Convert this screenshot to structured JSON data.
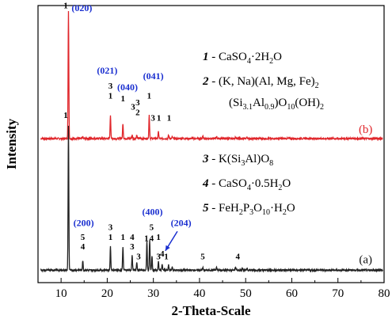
{
  "chart_data": {
    "type": "line",
    "xlabel": "2-Theta-Scale",
    "ylabel": "Intensity",
    "xlim": [
      5,
      80
    ],
    "xticks": [
      10,
      20,
      30,
      40,
      50,
      60,
      70,
      80
    ],
    "series": [
      {
        "name": "(b)",
        "color": "#e0262b",
        "baseline": 0.52,
        "noise": 0.006,
        "peaks": [
          {
            "x": 11.6,
            "h": 0.46
          },
          {
            "x": 14.7,
            "h": 0.006
          },
          {
            "x": 20.7,
            "h": 0.085
          },
          {
            "x": 23.4,
            "h": 0.055
          },
          {
            "x": 25.4,
            "h": 0.012
          },
          {
            "x": 26.4,
            "h": 0.012
          },
          {
            "x": 29.1,
            "h": 0.085
          },
          {
            "x": 31.1,
            "h": 0.025
          },
          {
            "x": 33.3,
            "h": 0.012
          },
          {
            "x": 34.1,
            "h": 0.006
          },
          {
            "x": 40.7,
            "h": 0.009
          },
          {
            "x": 43.7,
            "h": 0.008
          },
          {
            "x": 47.8,
            "h": 0.007
          },
          {
            "x": 50.3,
            "h": 0.006
          }
        ]
      },
      {
        "name": "(a)",
        "color": "#222222",
        "baseline": 0.045,
        "noise": 0.006,
        "peaks": [
          {
            "x": 11.6,
            "h": 0.52
          },
          {
            "x": 14.7,
            "h": 0.035
          },
          {
            "x": 20.7,
            "h": 0.085
          },
          {
            "x": 23.4,
            "h": 0.085
          },
          {
            "x": 25.4,
            "h": 0.055
          },
          {
            "x": 26.4,
            "h": 0.03
          },
          {
            "x": 28.6,
            "h": 0.105
          },
          {
            "x": 29.2,
            "h": 0.11
          },
          {
            "x": 29.7,
            "h": 0.05
          },
          {
            "x": 31.1,
            "h": 0.03
          },
          {
            "x": 31.9,
            "h": 0.022
          },
          {
            "x": 33.3,
            "h": 0.018
          },
          {
            "x": 34.1,
            "h": 0.012
          },
          {
            "x": 40.7,
            "h": 0.01
          },
          {
            "x": 43.7,
            "h": 0.009
          },
          {
            "x": 47.8,
            "h": 0.012
          },
          {
            "x": 49.3,
            "h": 0.01
          },
          {
            "x": 50.3,
            "h": 0.008
          }
        ]
      }
    ],
    "peak_labels": [
      {
        "x": 11.0,
        "y": 0.99,
        "text": "1"
      },
      {
        "x": 20.7,
        "y": 0.7,
        "text": "3"
      },
      {
        "x": 20.7,
        "y": 0.665,
        "text": "1"
      },
      {
        "x": 23.4,
        "y": 0.655,
        "text": "1"
      },
      {
        "x": 25.6,
        "y": 0.625,
        "text": "3"
      },
      {
        "x": 26.6,
        "y": 0.64,
        "text": "3"
      },
      {
        "x": 26.6,
        "y": 0.605,
        "text": "2"
      },
      {
        "x": 29.1,
        "y": 0.665,
        "text": "1"
      },
      {
        "x": 29.9,
        "y": 0.585,
        "text": "3"
      },
      {
        "x": 31.2,
        "y": 0.585,
        "text": "1"
      },
      {
        "x": 33.4,
        "y": 0.585,
        "text": "1"
      },
      {
        "x": 11.0,
        "y": 0.595,
        "text": "1"
      },
      {
        "x": 14.7,
        "y": 0.12,
        "text": "4"
      },
      {
        "x": 14.7,
        "y": 0.155,
        "text": "5"
      },
      {
        "x": 20.7,
        "y": 0.19,
        "text": "3"
      },
      {
        "x": 20.7,
        "y": 0.155,
        "text": "1"
      },
      {
        "x": 23.4,
        "y": 0.155,
        "text": "1"
      },
      {
        "x": 25.4,
        "y": 0.155,
        "text": "4"
      },
      {
        "x": 25.4,
        "y": 0.12,
        "text": "3"
      },
      {
        "x": 26.8,
        "y": 0.085,
        "text": "3"
      },
      {
        "x": 28.5,
        "y": 0.15,
        "text": "1"
      },
      {
        "x": 29.6,
        "y": 0.19,
        "text": "5"
      },
      {
        "x": 29.6,
        "y": 0.15,
        "text": "4"
      },
      {
        "x": 31.1,
        "y": 0.155,
        "text": "1"
      },
      {
        "x": 31.1,
        "y": 0.085,
        "text": "3"
      },
      {
        "x": 31.9,
        "y": 0.095,
        "text": "4"
      },
      {
        "x": 32.8,
        "y": 0.085,
        "text": "1"
      },
      {
        "x": 40.7,
        "y": 0.085,
        "text": "5"
      },
      {
        "x": 48.3,
        "y": 0.085,
        "text": "4"
      }
    ],
    "hkl_labels": [
      {
        "x": 14.5,
        "y": 0.98,
        "text": "(020)"
      },
      {
        "x": 20.0,
        "y": 0.755,
        "text": "(021)"
      },
      {
        "x": 24.4,
        "y": 0.695,
        "text": "(040)"
      },
      {
        "x": 30.0,
        "y": 0.735,
        "text": "(041)"
      },
      {
        "x": 14.9,
        "y": 0.205,
        "text": "(200)"
      },
      {
        "x": 29.8,
        "y": 0.245,
        "text": "(400)"
      },
      {
        "x": 36.0,
        "y": 0.205,
        "text": "(204)"
      }
    ],
    "arrow": {
      "x1": 35.2,
      "y1": 0.185,
      "x2": 32.6,
      "y2": 0.115,
      "color": "#1a2fd0"
    },
    "curve_tags": [
      {
        "text": "(b)",
        "x": 76.0,
        "y": 0.54,
        "color": "#e0262b"
      },
      {
        "text": "(a)",
        "x": 76.0,
        "y": 0.07,
        "color": "#111111"
      }
    ]
  },
  "legend": [
    {
      "num": "1",
      "text": "- CaSO",
      "sub1": "4",
      "rest": "·2H",
      "sub2": "2",
      "tail": "O"
    },
    {
      "num": "2",
      "text": "- (K, Na)(Al, Mg, Fe)",
      "sub1": "2"
    },
    {
      "num": "",
      "text": "(Si",
      "sub1": "3.1",
      "rest": "Al",
      "sub2": "0.9",
      "tail": ")O",
      "sub3": "10",
      "tail2": "(OH)",
      "sub4": "2"
    },
    {
      "num": "3",
      "text": "- K(Si",
      "sub1": "3",
      "rest": "Al)O",
      "sub2": "8"
    },
    {
      "num": "4",
      "text": "- CaSO",
      "sub1": "4",
      "rest": "·0.5H",
      "sub2": "2",
      "tail": "O"
    },
    {
      "num": "5",
      "text": "- FeH",
      "sub1": "2",
      "rest": "P",
      "sub2": "3",
      "tail": "O",
      "sub3": "10",
      "tail2": "·H",
      "sub4": "2",
      "tail3": "O"
    }
  ]
}
